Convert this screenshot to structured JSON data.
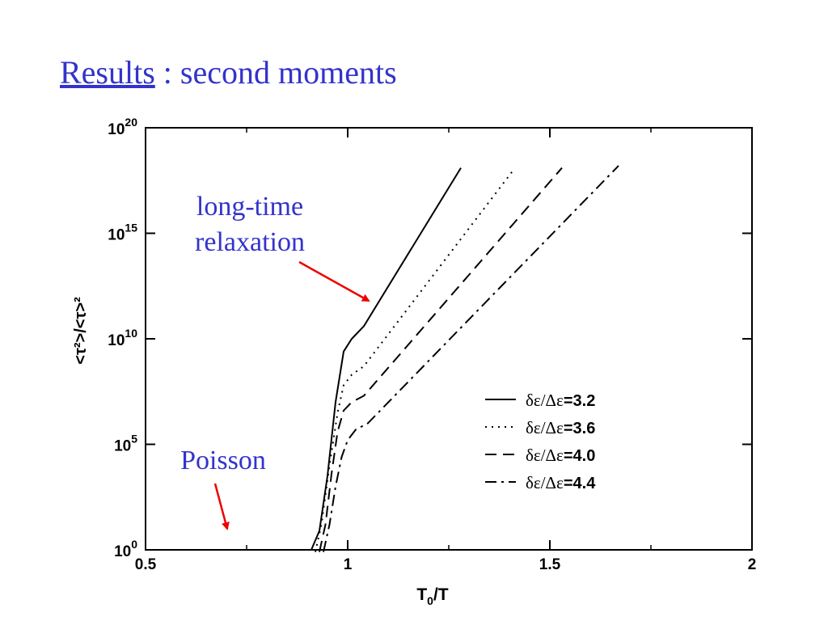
{
  "slide": {
    "title_link": "Results",
    "title_rest": " : second moments"
  },
  "annotations": {
    "long_time_line1": "long-time",
    "long_time_line2": "relaxation",
    "poisson": "Poisson"
  },
  "colors": {
    "title": "#3333cc",
    "arrow": "#ee0000",
    "curve": "#000000"
  },
  "chart_data": {
    "type": "line",
    "xlabel_main": "T",
    "xlabel_sub": "0",
    "xlabel_tail": "/T",
    "ylabel": "<τ²>/<τ>²",
    "xlim": [
      0.5,
      2
    ],
    "ylim_log10": [
      0,
      20
    ],
    "y_scale": "log",
    "x_ticks": [
      "0.5",
      "1",
      "1.5",
      "2"
    ],
    "x_tick_values": [
      0.5,
      1,
      1.5,
      2
    ],
    "y_tick_base": "10",
    "y_tick_exponents": [
      "0",
      "5",
      "10",
      "15",
      "20"
    ],
    "grid": false,
    "legend_position": "lower-right",
    "series": [
      {
        "name": "δε/Δε=3.2",
        "name_prefix": "δε/Δε",
        "name_value": "=3.2",
        "dash": "solid",
        "x": [
          0.62,
          0.91,
          0.93,
          0.95,
          0.97,
          0.99,
          1.01,
          1.04,
          1.28
        ],
        "log10y": [
          0.0,
          0.0,
          0.9,
          3.5,
          7.0,
          9.4,
          10.0,
          10.6,
          18.1
        ]
      },
      {
        "name": "δε/Δε=3.6",
        "name_prefix": "δε/Δε",
        "name_value": "=3.6",
        "dash": "dot",
        "x": [
          0.92,
          0.935,
          0.955,
          0.975,
          0.99,
          1.01,
          1.04,
          1.41
        ],
        "log10y": [
          -0.1,
          1.2,
          4.0,
          6.5,
          7.8,
          8.3,
          8.7,
          18.0
        ]
      },
      {
        "name": "δε/Δε=4.0",
        "name_prefix": "δε/Δε",
        "name_value": "=4.0",
        "dash": "dash",
        "x": [
          0.93,
          0.945,
          0.96,
          0.975,
          0.99,
          1.01,
          1.04,
          1.53
        ],
        "log10y": [
          -0.1,
          1.2,
          3.6,
          5.6,
          6.6,
          7.0,
          7.3,
          18.1
        ]
      },
      {
        "name": "δε/Δε=4.4",
        "name_prefix": "δε/Δε",
        "name_value": "=4.4",
        "dash": "dashdot",
        "x": [
          0.94,
          0.955,
          0.97,
          0.985,
          1.0,
          1.02,
          1.05,
          1.67
        ],
        "log10y": [
          -0.1,
          1.2,
          3.0,
          4.4,
          5.2,
          5.7,
          6.0,
          18.2
        ]
      }
    ]
  }
}
